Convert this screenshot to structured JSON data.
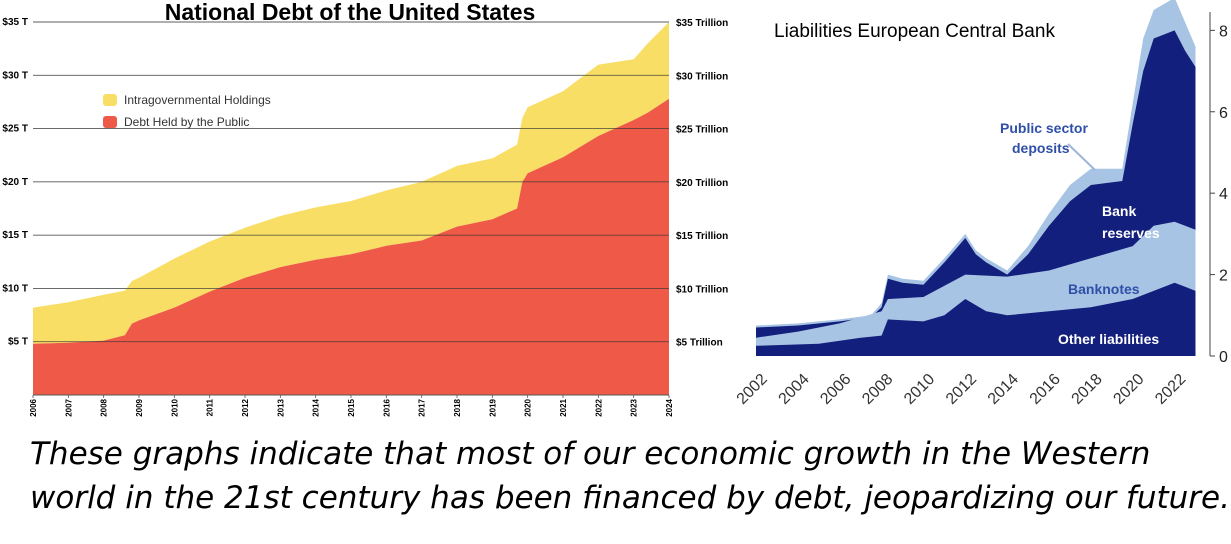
{
  "chart_data": [
    {
      "type": "area",
      "stacked": true,
      "title": "National Debt of the United States",
      "x": [
        "2006",
        "2007",
        "2008",
        "2009",
        "2010",
        "2011",
        "2012",
        "2013",
        "2014",
        "2015",
        "2016",
        "2017",
        "2018",
        "2019",
        "2020",
        "2021",
        "2022",
        "2023",
        "2024"
      ],
      "xlim": [
        2006,
        2024
      ],
      "ylim": [
        0,
        35
      ],
      "y_ticks_left": [
        "$5 T",
        "$10 T",
        "$15 T",
        "$20 T",
        "$25 T",
        "$30 T",
        "$35 T"
      ],
      "y_ticks_right": [
        "$5 Trillion",
        "$10 Trillion",
        "$15 Trillion",
        "$20 Trillion",
        "$25 Trillion",
        "$30 Trillion",
        "$35 Trillion"
      ],
      "legend_position": "top-left",
      "grid": true,
      "series": [
        {
          "name": "Debt Held by the Public",
          "color": "#ef5a48",
          "points": [
            [
              2006,
              4.8
            ],
            [
              2007,
              4.9
            ],
            [
              2008,
              5.1
            ],
            [
              2008.6,
              5.6
            ],
            [
              2008.8,
              6.7
            ],
            [
              2009,
              7.0
            ],
            [
              2010,
              8.2
            ],
            [
              2011,
              9.7
            ],
            [
              2012,
              11.0
            ],
            [
              2013,
              12.0
            ],
            [
              2014,
              12.7
            ],
            [
              2015,
              13.2
            ],
            [
              2016,
              14.0
            ],
            [
              2017,
              14.5
            ],
            [
              2018,
              15.8
            ],
            [
              2019,
              16.5
            ],
            [
              2019.7,
              17.5
            ],
            [
              2019.85,
              20.0
            ],
            [
              2020,
              20.8
            ],
            [
              2021,
              22.3
            ],
            [
              2022,
              24.3
            ],
            [
              2023,
              25.8
            ],
            [
              2023.4,
              26.5
            ],
            [
              2024,
              27.8
            ]
          ]
        },
        {
          "name": "Intragovernmental Holdings",
          "color": "#f9de66",
          "totals": [
            [
              2006,
              8.2
            ],
            [
              2007,
              8.7
            ],
            [
              2008,
              9.4
            ],
            [
              2008.6,
              9.8
            ],
            [
              2008.8,
              10.7
            ],
            [
              2009,
              11.0
            ],
            [
              2010,
              12.8
            ],
            [
              2011,
              14.4
            ],
            [
              2012,
              15.7
            ],
            [
              2013,
              16.8
            ],
            [
              2014,
              17.6
            ],
            [
              2015,
              18.2
            ],
            [
              2016,
              19.2
            ],
            [
              2017,
              20.0
            ],
            [
              2018,
              21.5
            ],
            [
              2019,
              22.2
            ],
            [
              2019.7,
              23.5
            ],
            [
              2019.85,
              26.0
            ],
            [
              2020,
              27.0
            ],
            [
              2021,
              28.5
            ],
            [
              2022,
              31.0
            ],
            [
              2023,
              31.5
            ],
            [
              2023.4,
              33.0
            ],
            [
              2024,
              35.0
            ]
          ]
        }
      ]
    },
    {
      "type": "area",
      "stacked": true,
      "title": "Liabilities European Central Bank",
      "x_ticks": [
        "2002",
        "2004",
        "2006",
        "2008",
        "2010",
        "2012",
        "2014",
        "2016",
        "2018",
        "2020",
        "2022"
      ],
      "xlim": [
        2002,
        2023.5
      ],
      "ylim": [
        0,
        8.5
      ],
      "y_ticks": [
        "0",
        "2",
        "4",
        "6",
        "8"
      ],
      "grid": false,
      "series": [
        {
          "name": "Other liabilities",
          "color": "#131f7c",
          "totals": [
            [
              2002,
              0.25
            ],
            [
              2005,
              0.3
            ],
            [
              2007,
              0.45
            ],
            [
              2008,
              0.5
            ],
            [
              2008.3,
              0.9
            ],
            [
              2010,
              0.85
            ],
            [
              2011,
              1.0
            ],
            [
              2012,
              1.4
            ],
            [
              2013,
              1.1
            ],
            [
              2014,
              1.0
            ],
            [
              2016,
              1.1
            ],
            [
              2018,
              1.2
            ],
            [
              2020,
              1.4
            ],
            [
              2021,
              1.6
            ],
            [
              2022,
              1.8
            ],
            [
              2022.5,
              1.7
            ],
            [
              2023,
              1.6
            ]
          ]
        },
        {
          "name": "Banknotes",
          "color": "#a8c4e4",
          "totals": [
            [
              2002,
              0.45
            ],
            [
              2004,
              0.6
            ],
            [
              2006,
              0.8
            ],
            [
              2008,
              1.1
            ],
            [
              2008.3,
              1.4
            ],
            [
              2010,
              1.45
            ],
            [
              2012,
              2.0
            ],
            [
              2014,
              1.95
            ],
            [
              2016,
              2.1
            ],
            [
              2018,
              2.4
            ],
            [
              2020,
              2.7
            ],
            [
              2021,
              3.2
            ],
            [
              2022,
              3.3
            ],
            [
              2022.5,
              3.2
            ],
            [
              2023,
              3.1
            ]
          ]
        },
        {
          "name": "Bank reserves",
          "color": "#131f7c",
          "totals": [
            [
              2002,
              0.7
            ],
            [
              2004,
              0.75
            ],
            [
              2006,
              0.85
            ],
            [
              2007.5,
              0.95
            ],
            [
              2008,
              1.2
            ],
            [
              2008.3,
              1.9
            ],
            [
              2009,
              1.8
            ],
            [
              2010,
              1.75
            ],
            [
              2011,
              2.3
            ],
            [
              2012,
              2.9
            ],
            [
              2012.5,
              2.5
            ],
            [
              2013,
              2.3
            ],
            [
              2014,
              2.0
            ],
            [
              2015,
              2.5
            ],
            [
              2016,
              3.2
            ],
            [
              2017,
              3.8
            ],
            [
              2018,
              4.2
            ],
            [
              2019.5,
              4.3
            ],
            [
              2020,
              5.7
            ],
            [
              2020.5,
              7.0
            ],
            [
              2021,
              7.8
            ],
            [
              2022,
              8.0
            ],
            [
              2022.5,
              7.5
            ],
            [
              2023,
              7.1
            ]
          ]
        },
        {
          "name": "Public sector deposits",
          "color": "#a8c4e4",
          "totals": [
            [
              2002,
              0.75
            ],
            [
              2004,
              0.8
            ],
            [
              2006,
              0.9
            ],
            [
              2007.5,
              1.0
            ],
            [
              2008,
              1.3
            ],
            [
              2008.3,
              2.0
            ],
            [
              2009,
              1.9
            ],
            [
              2010,
              1.85
            ],
            [
              2011,
              2.4
            ],
            [
              2012,
              3.0
            ],
            [
              2012.5,
              2.6
            ],
            [
              2013,
              2.4
            ],
            [
              2014,
              2.1
            ],
            [
              2015,
              2.7
            ],
            [
              2016,
              3.5
            ],
            [
              2017,
              4.2
            ],
            [
              2018,
              4.6
            ],
            [
              2019.5,
              4.6
            ],
            [
              2020,
              6.2
            ],
            [
              2020.5,
              7.8
            ],
            [
              2021,
              8.5
            ],
            [
              2022,
              8.8
            ],
            [
              2022.5,
              8.2
            ],
            [
              2023,
              7.6
            ]
          ]
        }
      ],
      "labels": {
        "public_sector": [
          "Public sector",
          "deposits"
        ],
        "bank_reserves": [
          "Bank",
          "reserves"
        ],
        "banknotes": "Banknotes",
        "other": "Other liabilities"
      }
    }
  ],
  "caption": {
    "line1": "These graphs indicate that most of our economic growth in the Western",
    "line2": "world in the 21st century has been financed by debt, jeopardizing our future."
  }
}
